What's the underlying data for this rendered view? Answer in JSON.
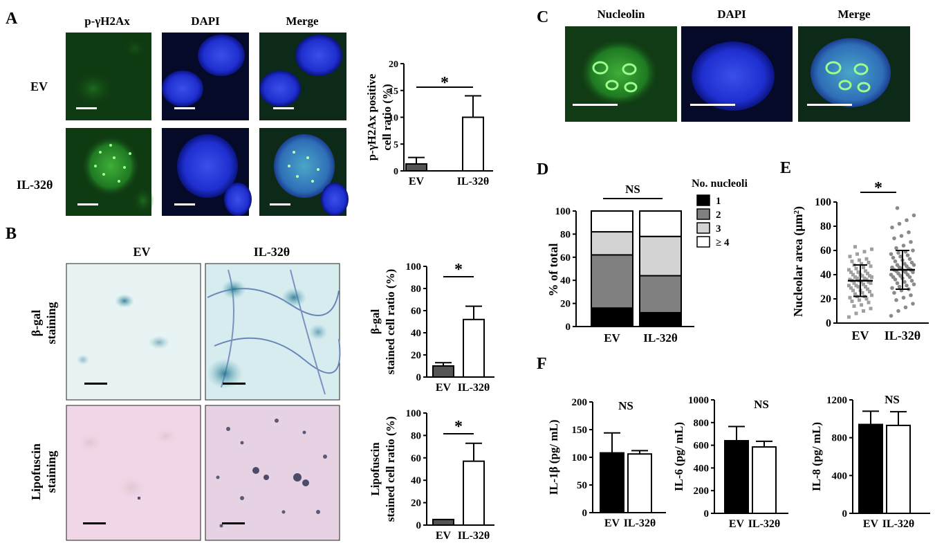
{
  "panels": {
    "A": {
      "letter": "A",
      "columns": [
        "p-γH2Ax",
        "DAPI",
        "Merge"
      ],
      "rows": [
        "EV",
        "IL-32θ"
      ]
    },
    "B": {
      "letter": "B",
      "columns": [
        "EV",
        "IL-32θ"
      ],
      "rows": [
        [
          "β-gal",
          "staining"
        ],
        [
          "Lipofuscin",
          "staining"
        ]
      ]
    },
    "C": {
      "letter": "C",
      "columns": [
        "Nucleolin",
        "DAPI",
        "Merge"
      ]
    },
    "D": {
      "letter": "D"
    },
    "E": {
      "letter": "E"
    },
    "F": {
      "letter": "F"
    }
  },
  "chart_data": [
    {
      "id": "A_bar",
      "type": "bar",
      "categories": [
        "EV",
        "IL-32θ"
      ],
      "values": [
        1.3,
        10
      ],
      "errors": [
        1.2,
        4
      ],
      "fill": [
        "#555555",
        "#ffffff"
      ],
      "ylabel": [
        "p-γH2Ax positive",
        "cell ratio (%)"
      ],
      "ylim": [
        0,
        20
      ],
      "yticks": [
        0,
        5,
        10,
        15,
        20
      ],
      "annotation": "*"
    },
    {
      "id": "B_beta_gal",
      "type": "bar",
      "categories": [
        "EV",
        "IL-32θ"
      ],
      "values": [
        10,
        52
      ],
      "errors": [
        3,
        12
      ],
      "fill": [
        "#555555",
        "#ffffff"
      ],
      "ylabel": [
        "β-gal",
        "stained cell ratio (%)"
      ],
      "ylim": [
        0,
        100
      ],
      "yticks": [
        0,
        20,
        40,
        60,
        80,
        100
      ],
      "annotation": "*"
    },
    {
      "id": "B_lipofuscin",
      "type": "bar",
      "categories": [
        "EV",
        "IL-32θ"
      ],
      "values": [
        5,
        57
      ],
      "errors": [
        0,
        16
      ],
      "fill": [
        "#555555",
        "#ffffff"
      ],
      "ylabel": [
        "Lipofuscin",
        "stained cell ratio (%)"
      ],
      "ylim": [
        0,
        100
      ],
      "yticks": [
        0,
        20,
        40,
        60,
        80,
        100
      ],
      "annotation": "*"
    },
    {
      "id": "D_stacked",
      "type": "bar",
      "stacked": true,
      "categories": [
        "EV",
        "IL-32θ"
      ],
      "series": [
        {
          "name": "1",
          "values": [
            16,
            12
          ],
          "color": "#000000"
        },
        {
          "name": "2",
          "values": [
            46,
            32
          ],
          "color": "#808080"
        },
        {
          "name": "3",
          "values": [
            20,
            34
          ],
          "color": "#d3d3d3"
        },
        {
          "name": "≥ 4",
          "values": [
            18,
            22
          ],
          "color": "#ffffff"
        }
      ],
      "legend_title": "No. nucleoli",
      "ylabel": "% of total",
      "ylim": [
        0,
        100
      ],
      "yticks": [
        0,
        20,
        40,
        60,
        80,
        100
      ],
      "annotation": "NS"
    },
    {
      "id": "E_scatter",
      "type": "scatter",
      "categories": [
        "EV",
        "IL-32θ"
      ],
      "means": [
        35,
        44
      ],
      "sd": [
        13,
        16
      ],
      "points": [
        [
          5,
          8,
          10,
          12,
          14,
          15,
          17,
          18,
          19,
          20,
          21,
          22,
          22,
          23,
          24,
          25,
          26,
          27,
          27,
          28,
          29,
          30,
          30,
          31,
          31,
          32,
          33,
          33,
          34,
          34,
          35,
          35,
          36,
          36,
          37,
          37,
          38,
          38,
          39,
          39,
          40,
          40,
          41,
          42,
          42,
          43,
          44,
          45,
          46,
          47,
          48,
          49,
          50,
          51,
          52,
          53,
          55,
          57,
          59,
          61,
          63
        ],
        [
          6,
          10,
          13,
          16,
          19,
          21,
          23,
          25,
          27,
          28,
          29,
          30,
          31,
          32,
          33,
          34,
          35,
          36,
          37,
          38,
          38,
          39,
          40,
          40,
          41,
          42,
          42,
          43,
          43,
          44,
          44,
          45,
          45,
          46,
          46,
          47,
          48,
          48,
          49,
          50,
          51,
          52,
          53,
          54,
          55,
          56,
          57,
          58,
          59,
          60,
          62,
          64,
          67,
          70,
          72,
          75,
          79,
          82,
          85,
          89,
          95
        ]
      ],
      "marker_colors": [
        "#a0a0a0",
        "#8a8a8a"
      ],
      "ylabel": "Nucleolar area (μm²)",
      "ylim": [
        0,
        100
      ],
      "yticks": [
        0,
        20,
        40,
        60,
        80,
        100
      ],
      "annotation": "*"
    },
    {
      "id": "F_IL1b",
      "type": "bar",
      "categories": [
        "EV",
        "IL-32θ"
      ],
      "values": [
        108,
        106
      ],
      "errors": [
        36,
        6
      ],
      "fill": [
        "#000000",
        "#ffffff"
      ],
      "ylabel": "IL-1β (pg/ mL)",
      "ylim": [
        0,
        200
      ],
      "yticks": [
        0,
        50,
        100,
        150,
        200
      ],
      "annotation": "NS"
    },
    {
      "id": "F_IL6",
      "type": "bar",
      "categories": [
        "EV",
        "IL-32θ"
      ],
      "values": [
        640,
        585
      ],
      "errors": [
        125,
        50
      ],
      "fill": [
        "#000000",
        "#ffffff"
      ],
      "ylabel": "IL-6 (pg/ mL)",
      "ylim": [
        0,
        1000
      ],
      "yticks": [
        0,
        200,
        400,
        600,
        800,
        1000
      ],
      "annotation": "NS"
    },
    {
      "id": "F_IL8",
      "type": "bar",
      "categories": [
        "EV",
        "IL-32θ"
      ],
      "values": [
        940,
        930
      ],
      "errors": [
        140,
        145
      ],
      "fill": [
        "#000000",
        "#ffffff"
      ],
      "ylabel": "IL-8 (pg/ mL)",
      "ylim": [
        0,
        1200
      ],
      "yticks": [
        0,
        400,
        800,
        1200
      ],
      "annotation": "NS"
    }
  ]
}
